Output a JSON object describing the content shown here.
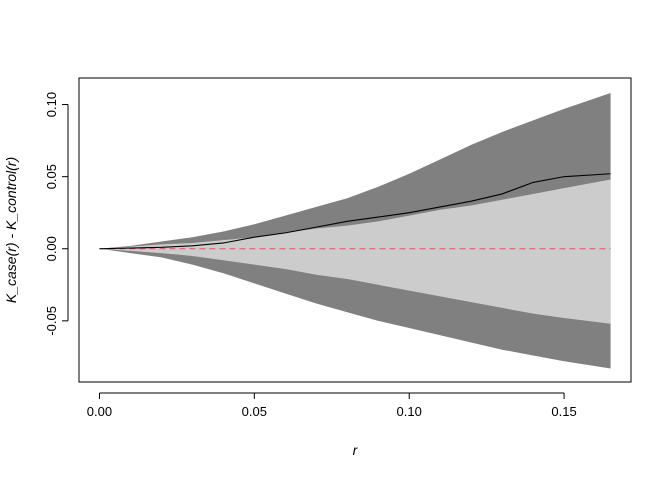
{
  "chart_data": {
    "type": "area",
    "title": "",
    "xlabel": "r",
    "ylabel": "K_case(r) - K_control(r)",
    "xlim": [
      -0.0066,
      0.1716
    ],
    "ylim": [
      -0.0924,
      0.1184
    ],
    "xticks": [
      0.0,
      0.05,
      0.1,
      0.15
    ],
    "xtick_labels": [
      "0.00",
      "0.05",
      "0.10",
      "0.15"
    ],
    "yticks": [
      -0.05,
      0.0,
      0.05,
      0.1
    ],
    "ytick_labels": [
      "-0.05",
      "0.00",
      "0.05",
      "0.10"
    ],
    "grid": false,
    "legend": "none",
    "colors": {
      "outer_band": "#808080",
      "inner_band": "#cccccc",
      "observed": "#000000",
      "reference": "#df536b"
    },
    "x": [
      0,
      0.01,
      0.02,
      0.03,
      0.04,
      0.05,
      0.06,
      0.07,
      0.08,
      0.09,
      0.1,
      0.11,
      0.12,
      0.13,
      0.14,
      0.15,
      0.165
    ],
    "series": [
      {
        "role": "outer_upper",
        "values": [
          0,
          0.002,
          0.005,
          0.008,
          0.012,
          0.017,
          0.023,
          0.029,
          0.035,
          0.043,
          0.052,
          0.062,
          0.072,
          0.081,
          0.089,
          0.097,
          0.108
        ]
      },
      {
        "role": "outer_lower",
        "values": [
          0,
          -0.003,
          -0.006,
          -0.011,
          -0.017,
          -0.024,
          -0.031,
          -0.038,
          -0.044,
          -0.05,
          -0.055,
          -0.06,
          -0.065,
          -0.07,
          -0.074,
          -0.078,
          -0.083
        ]
      },
      {
        "role": "inner_upper",
        "values": [
          0,
          0.0015,
          0.003,
          0.004,
          0.006,
          0.008,
          0.011,
          0.014,
          0.016,
          0.019,
          0.023,
          0.027,
          0.03,
          0.034,
          0.038,
          0.042,
          0.048
        ]
      },
      {
        "role": "inner_lower",
        "values": [
          0,
          -0.0015,
          -0.003,
          -0.005,
          -0.008,
          -0.011,
          -0.014,
          -0.018,
          -0.021,
          -0.025,
          -0.029,
          -0.033,
          -0.037,
          -0.041,
          -0.045,
          -0.048,
          -0.052
        ]
      },
      {
        "role": "observed",
        "values": [
          0,
          0.0005,
          0.001,
          0.002,
          0.004,
          0.008,
          0.011,
          0.015,
          0.019,
          0.022,
          0.025,
          0.029,
          0.033,
          0.038,
          0.046,
          0.05,
          0.052
        ]
      },
      {
        "role": "reference",
        "values": [
          0,
          0,
          0,
          0,
          0,
          0,
          0,
          0,
          0,
          0,
          0,
          0,
          0,
          0,
          0,
          0,
          0
        ]
      }
    ]
  }
}
